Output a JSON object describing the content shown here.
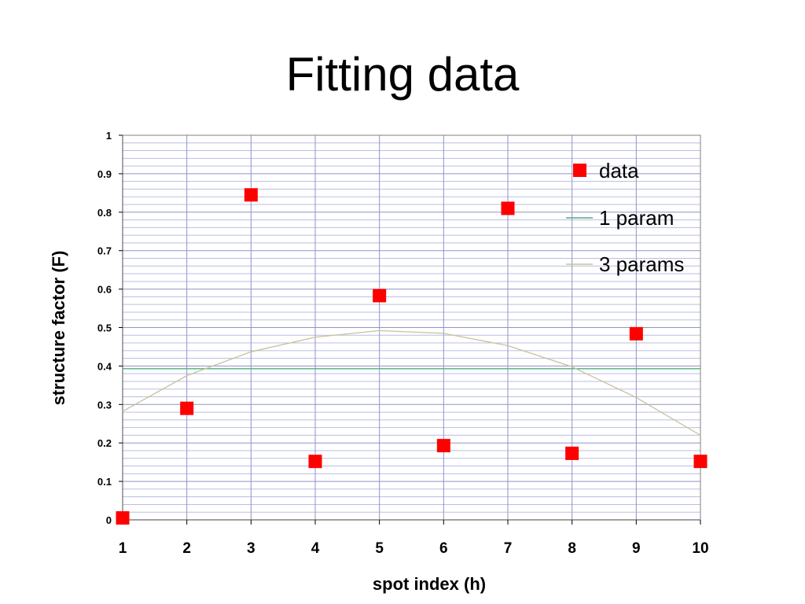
{
  "slide": {
    "title": "Fitting data"
  },
  "chart_data": {
    "type": "scatter",
    "xlabel": "spot index (h)",
    "ylabel": "structure factor (F)",
    "xlim": [
      1,
      10
    ],
    "ylim": [
      0,
      1
    ],
    "xticks": [
      "1",
      "2",
      "3",
      "4",
      "5",
      "6",
      "7",
      "8",
      "9",
      "10"
    ],
    "yticks": [
      "0",
      "0.1",
      "0.2",
      "0.3",
      "0.4",
      "0.5",
      "0.6",
      "0.7",
      "0.8",
      "0.9",
      "1"
    ],
    "grid": true,
    "legend_position": "top-right",
    "series": [
      {
        "name": "data",
        "kind": "markers",
        "color": "#ff0000",
        "x": [
          1,
          2,
          3,
          4,
          5,
          6,
          7,
          8,
          9,
          10
        ],
        "y": [
          0.005,
          0.29,
          0.845,
          0.152,
          0.583,
          0.193,
          0.81,
          0.173,
          0.484,
          0.152
        ]
      },
      {
        "name": "1 param",
        "kind": "line",
        "color": "#4caf7d",
        "x": [
          1,
          10
        ],
        "y": [
          0.393,
          0.393
        ]
      },
      {
        "name": "3 params",
        "kind": "line",
        "color": "#c8c29a",
        "x": [
          1,
          2,
          3,
          4,
          5,
          6,
          7,
          8,
          9,
          10
        ],
        "y": [
          0.282,
          0.375,
          0.437,
          0.475,
          0.492,
          0.485,
          0.453,
          0.398,
          0.318,
          0.22
        ]
      }
    ]
  }
}
